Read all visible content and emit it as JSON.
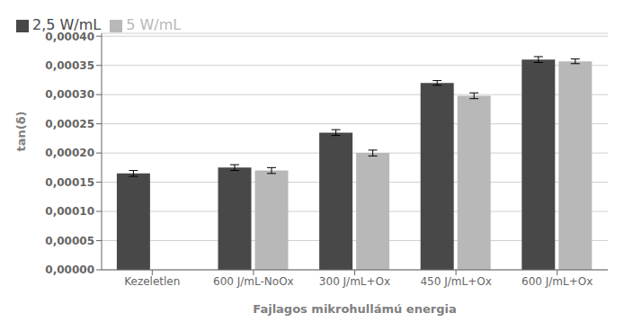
{
  "chart_data": {
    "type": "bar",
    "categories": [
      "Kezeletlen",
      "600 J/mL-NoOx",
      "300 J/mL+Ox",
      "450 J/mL+Ox",
      "600 J/mL+Ox"
    ],
    "series": [
      {
        "name": "2,5 W/mL",
        "color": "#484848",
        "values": [
          0.000165,
          0.000175,
          0.000235,
          0.00032,
          0.00036
        ],
        "errors": [
          5e-06,
          5e-06,
          5e-06,
          4e-06,
          5e-06
        ]
      },
      {
        "name": "5 W/mL",
        "color": "#b8b8b8",
        "values": [
          null,
          0.00017,
          0.0002,
          0.000298,
          0.000357
        ],
        "errors": [
          null,
          5e-06,
          5e-06,
          5e-06,
          4e-06
        ]
      }
    ],
    "ylabel": "tan(δ)",
    "xlabel": "Fajlagos mikrohullámú energia",
    "ylim": [
      0,
      0.000405
    ],
    "yticks": [
      {
        "value": 0.0,
        "label": "0,00000"
      },
      {
        "value": 5e-05,
        "label": "0,00005"
      },
      {
        "value": 0.0001,
        "label": "0,00010"
      },
      {
        "value": 0.00015,
        "label": "0,00015"
      },
      {
        "value": 0.0002,
        "label": "0,00020"
      },
      {
        "value": 0.00025,
        "label": "0,00025"
      },
      {
        "value": 0.0003,
        "label": "0,00030"
      },
      {
        "value": 0.00035,
        "label": "0,00035"
      },
      {
        "value": 0.0004,
        "label": "0,00040"
      }
    ],
    "grid": true,
    "legend": "upper left"
  }
}
